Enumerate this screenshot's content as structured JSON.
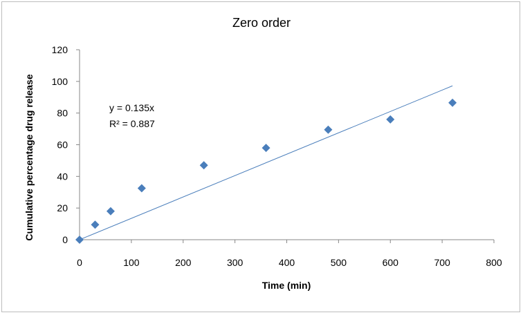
{
  "chart_data": {
    "type": "scatter",
    "title": "Zero order",
    "xlabel": "Time (min)",
    "ylabel": "Cumulative percentage drug release",
    "xlim": [
      0,
      800
    ],
    "ylim": [
      0,
      120
    ],
    "xticks": [
      0,
      100,
      200,
      300,
      400,
      500,
      600,
      700,
      800
    ],
    "yticks": [
      0,
      20,
      40,
      60,
      80,
      100,
      120
    ],
    "grid": false,
    "legend": "none",
    "series": [
      {
        "x": [
          0,
          30,
          60,
          120,
          240,
          360,
          480,
          600,
          720
        ],
        "y": [
          0,
          9.5,
          18,
          32.5,
          47,
          58,
          69.5,
          76,
          86.5
        ],
        "marker": "diamond",
        "color": "#4a7ebb"
      }
    ],
    "trendline": {
      "type": "linear",
      "slope": 0.135,
      "intercept": 0,
      "x_range": [
        0,
        720
      ],
      "color": "#4a7ebb",
      "equation": "y = 0.135x",
      "r_squared": "R² = 0.887"
    }
  }
}
